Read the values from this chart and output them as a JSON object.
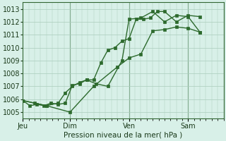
{
  "background_color": "#cce8d8",
  "plot_bg_color": "#d8f0e8",
  "grid_color": "#aaccbb",
  "line_color": "#2d6a2d",
  "marker_color": "#2d6a2d",
  "ylim": [
    1004.5,
    1013.5
  ],
  "yticks": [
    1005,
    1006,
    1007,
    1008,
    1009,
    1010,
    1011,
    1012,
    1013
  ],
  "xlabel": "Pression niveau de la mer( hPa )",
  "day_labels": [
    "Jeu",
    "Dim",
    "Ven",
    "Sam"
  ],
  "day_positions": [
    0.0,
    2.0,
    4.5,
    7.0
  ],
  "vline_positions": [
    2.0,
    4.5,
    7.0
  ],
  "series1_x": [
    0.0,
    0.3,
    0.6,
    0.9,
    1.2,
    1.5,
    1.8,
    2.1,
    2.4,
    2.7,
    3.0,
    3.3,
    3.6,
    3.9,
    4.2,
    4.5,
    4.8,
    5.1,
    5.4,
    5.7,
    6.0,
    6.5,
    7.0,
    7.5
  ],
  "series1_y": [
    1005.9,
    1005.5,
    1005.6,
    1005.5,
    1005.7,
    1005.6,
    1005.7,
    1007.1,
    1007.2,
    1007.5,
    1007.5,
    1008.8,
    1009.8,
    1010.0,
    1010.5,
    1010.7,
    1012.2,
    1012.2,
    1012.3,
    1012.8,
    1012.8,
    1012.0,
    1012.5,
    1012.4
  ],
  "series2_x": [
    0.0,
    0.5,
    1.0,
    1.5,
    1.8,
    2.1,
    2.4,
    2.7,
    3.1,
    3.6,
    4.2,
    4.5,
    5.0,
    5.5,
    6.0,
    6.5,
    7.0,
    7.5
  ],
  "series2_y": [
    1005.9,
    1005.7,
    1005.5,
    1005.7,
    1006.5,
    1007.0,
    1007.3,
    1007.5,
    1007.2,
    1007.0,
    1009.0,
    1012.2,
    1012.3,
    1012.8,
    1012.0,
    1012.5,
    1012.4,
    1011.2
  ],
  "series3_x": [
    0.0,
    1.0,
    2.0,
    3.0,
    4.0,
    4.5,
    5.0,
    5.5,
    6.0,
    6.5,
    7.0,
    7.5
  ],
  "series3_y": [
    1005.9,
    1005.5,
    1005.0,
    1007.0,
    1008.5,
    1009.2,
    1009.5,
    1011.3,
    1011.4,
    1011.6,
    1011.5,
    1011.2
  ],
  "xlim": [
    0.0,
    8.5
  ],
  "figsize": [
    3.2,
    2.0
  ],
  "dpi": 100
}
